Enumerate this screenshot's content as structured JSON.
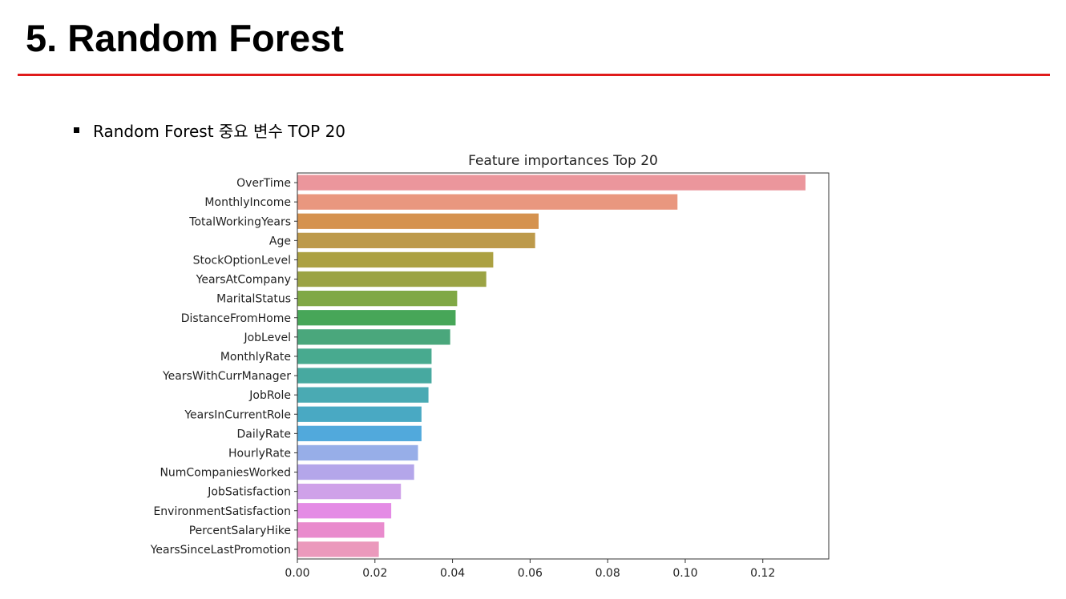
{
  "slide": {
    "title": "5. Random Forest",
    "bullet": "Random Forest 중요 변수 TOP 20",
    "accent_color": "#e01b1b"
  },
  "chart_data": {
    "type": "bar",
    "orientation": "horizontal",
    "title": "Feature importances Top 20",
    "xlabel": "",
    "ylabel": "",
    "xlim": [
      0,
      0.137
    ],
    "xticks": [
      "0.00",
      "0.02",
      "0.04",
      "0.06",
      "0.08",
      "0.10",
      "0.12"
    ],
    "grid": false,
    "categories": [
      "OverTime",
      "MonthlyIncome",
      "TotalWorkingYears",
      "Age",
      "StockOptionLevel",
      "YearsAtCompany",
      "MaritalStatus",
      "DistanceFromHome",
      "JobLevel",
      "MonthlyRate",
      "YearsWithCurrManager",
      "JobRole",
      "YearsInCurrentRole",
      "DailyRate",
      "HourlyRate",
      "NumCompaniesWorked",
      "JobSatisfaction",
      "EnvironmentSatisfaction",
      "PercentSalaryHike",
      "YearsSinceLastPromotion"
    ],
    "values": [
      0.131,
      0.098,
      0.0622,
      0.0613,
      0.0505,
      0.0487,
      0.0412,
      0.0408,
      0.0394,
      0.0346,
      0.0346,
      0.0338,
      0.032,
      0.032,
      0.0311,
      0.0301,
      0.0267,
      0.0242,
      0.0224,
      0.021
    ],
    "colors": [
      "#eb969c",
      "#e9977f",
      "#d5924f",
      "#bd9a4b",
      "#aca142",
      "#9ba344",
      "#80a845",
      "#47a658",
      "#4aa77c",
      "#48aa8f",
      "#47a9a0",
      "#4aaab3",
      "#49a9c3",
      "#51a9dc",
      "#97aee8",
      "#b4a6ea",
      "#cfa1e9",
      "#e48be5",
      "#e98bcd",
      "#eb99bc"
    ]
  }
}
